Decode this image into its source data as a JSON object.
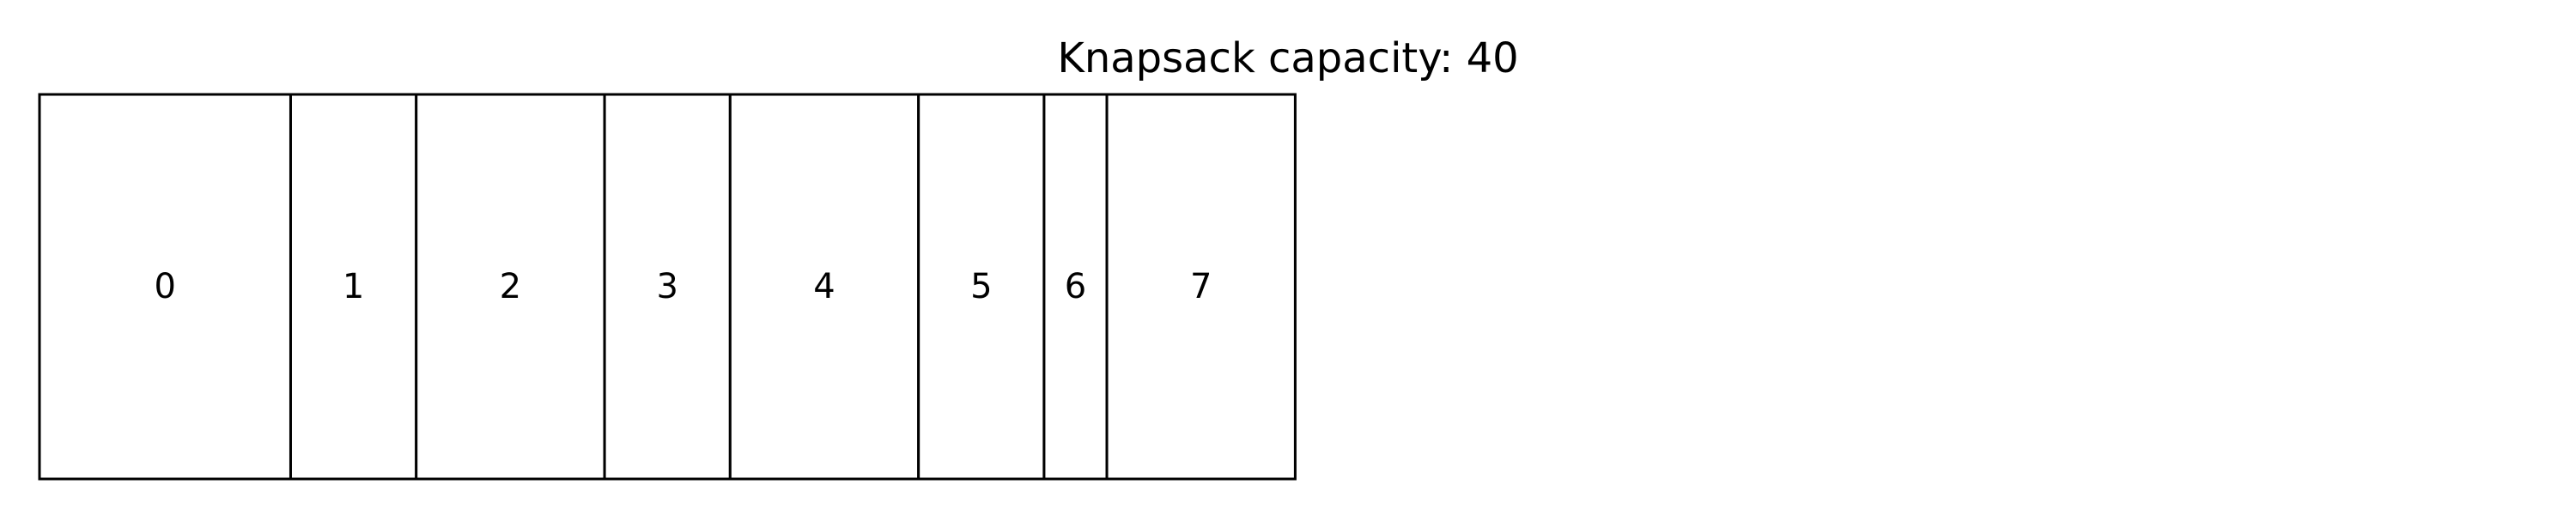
{
  "title": "Knapsack capacity: 40",
  "colors": {
    "stroke": "#000000",
    "fill": "#ffffff",
    "text": "#000000"
  },
  "knapsack": {
    "capacity": 40,
    "items": [
      {
        "label": "0",
        "weight": 8
      },
      {
        "label": "1",
        "weight": 4
      },
      {
        "label": "2",
        "weight": 6
      },
      {
        "label": "3",
        "weight": 4
      },
      {
        "label": "4",
        "weight": 6
      },
      {
        "label": "5",
        "weight": 4
      },
      {
        "label": "6",
        "weight": 2
      },
      {
        "label": "7",
        "weight": 6
      }
    ]
  }
}
